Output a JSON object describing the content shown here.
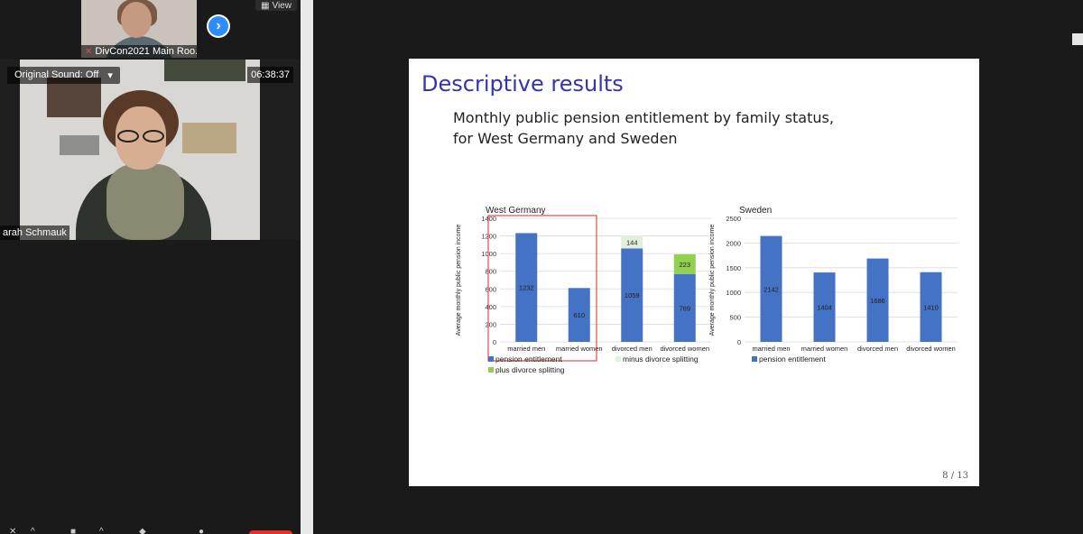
{
  "participants": {
    "top_tile_name": "DivCon2021 Main Roo...",
    "view_label": "View",
    "speaker_name": "arah Schmauk",
    "original_sound": "Original Sound: Off",
    "original_sound_caret": "▾",
    "elapsed_time": "06:38:37"
  },
  "slide": {
    "title": "Descriptive results",
    "subtitle_line1": "Monthly public pension entitlement by family status,",
    "subtitle_line2": "for West Germany and Sweden",
    "page": "8 / 13"
  },
  "colors": {
    "accent_blue": "#2d8cff",
    "slide_title": "#3333b3",
    "bar_blue": "#4472c4",
    "bar_light_green": "#e2efda",
    "bar_green": "#92d050",
    "highlight_red": "#d62828",
    "end_button_red": "#e02f2f"
  },
  "chart_data": [
    {
      "type": "bar",
      "title": "West Germany",
      "ylabel": "Average monthly public pension income",
      "ylim": [
        0,
        1400
      ],
      "yticks": [
        "0",
        "200",
        "400",
        "600",
        "800",
        "1000",
        "1200",
        "1400"
      ],
      "categories": [
        "married men",
        "married women",
        "divorced men",
        "divorced women"
      ],
      "series": [
        {
          "name": "pension entitlement",
          "values": [
            1232,
            610,
            1059,
            769
          ],
          "color": "#4472c4"
        },
        {
          "name": "minus divorce splitting",
          "values": [
            null,
            null,
            144,
            null
          ],
          "color": "#e2efda"
        },
        {
          "name": "plus divorce splitting",
          "values": [
            null,
            null,
            null,
            223
          ],
          "color": "#92d050"
        }
      ],
      "highlighted_categories": [
        "married men",
        "married women"
      ],
      "legend_position": "bottom"
    },
    {
      "type": "bar",
      "title": "Sweden",
      "ylabel": "Average monthly public pension income",
      "ylim": [
        0,
        2500
      ],
      "yticks": [
        "0",
        "500",
        "1000",
        "1500",
        "2000",
        "2500"
      ],
      "categories": [
        "married men",
        "married women",
        "divorced men",
        "divorced women"
      ],
      "series": [
        {
          "name": "pension entitlement",
          "values": [
            2142,
            1404,
            1686,
            1410
          ],
          "color": "#4472c4"
        }
      ],
      "legend_position": "bottom"
    }
  ]
}
